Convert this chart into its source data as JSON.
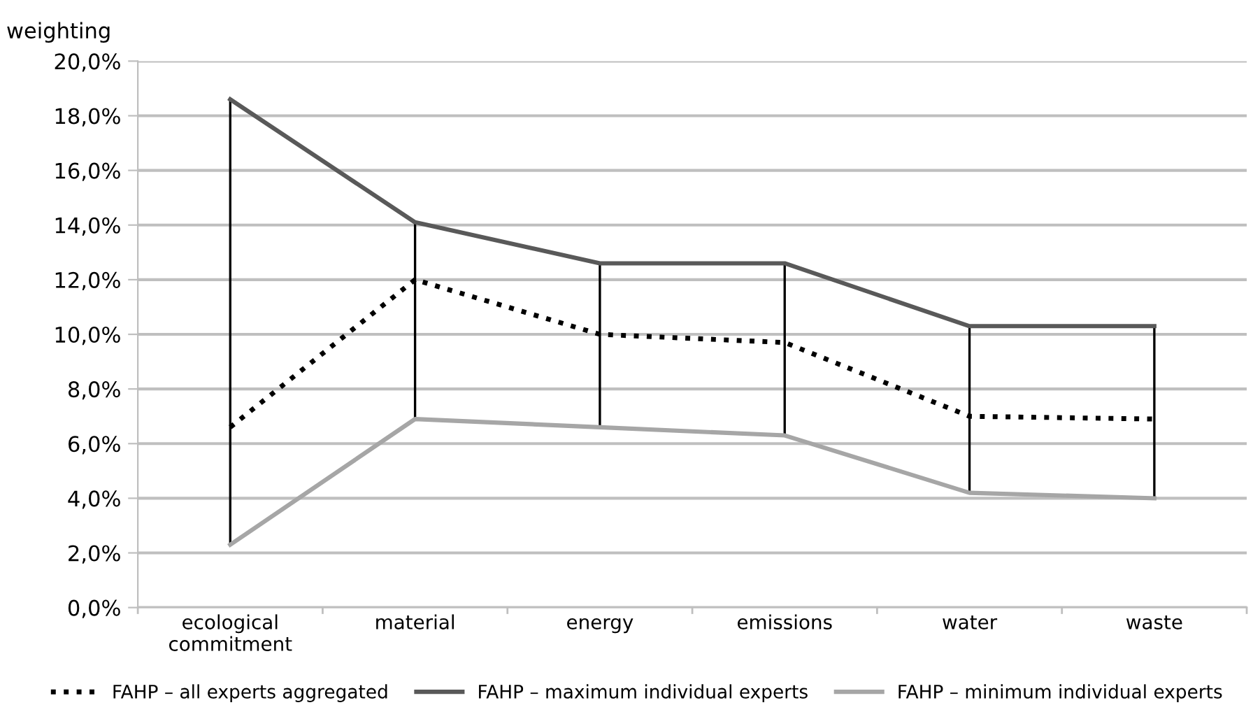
{
  "chart_data": {
    "type": "line",
    "ylabel": "weighting",
    "categories": [
      "ecological\ncommitment",
      "material",
      "energy",
      "emissions",
      "water",
      "waste"
    ],
    "series": [
      {
        "name": "FAHP – all experts aggregated",
        "color": "#000000",
        "line_style": "dotted",
        "values": [
          6.6,
          12.0,
          10.0,
          9.7,
          7.0,
          6.9
        ],
        "errors": [
          [
            2.3,
            18.6
          ],
          [
            6.9,
            14.1
          ],
          [
            6.6,
            12.6
          ],
          [
            6.3,
            12.6
          ],
          [
            4.2,
            10.3
          ],
          [
            4.0,
            10.3
          ]
        ]
      },
      {
        "name": "FAHP – maximum individual experts",
        "color": "#595959",
        "line_style": "solid",
        "values": [
          18.6,
          14.1,
          12.6,
          12.6,
          10.3,
          10.3
        ]
      },
      {
        "name": "FAHP – minimum individual experts",
        "color": "#a6a6a6",
        "line_style": "solid",
        "values": [
          2.3,
          6.9,
          6.6,
          6.3,
          4.2,
          4.0
        ]
      }
    ],
    "ylim": [
      0,
      20
    ],
    "yticks": [
      {
        "value": 0,
        "label": "0,0%"
      },
      {
        "value": 2,
        "label": "2,0%"
      },
      {
        "value": 4,
        "label": "4,0%"
      },
      {
        "value": 6,
        "label": "6,0%"
      },
      {
        "value": 8,
        "label": "8,0%"
      },
      {
        "value": 10,
        "label": "10,0%"
      },
      {
        "value": 12,
        "label": "12,0%"
      },
      {
        "value": 14,
        "label": "14,0%"
      },
      {
        "value": 16,
        "label": "16,0%"
      },
      {
        "value": 18,
        "label": "18,0%"
      },
      {
        "value": 20,
        "label": "20,0%"
      }
    ],
    "grid": "y",
    "legend": "bottom",
    "marker": "none"
  }
}
